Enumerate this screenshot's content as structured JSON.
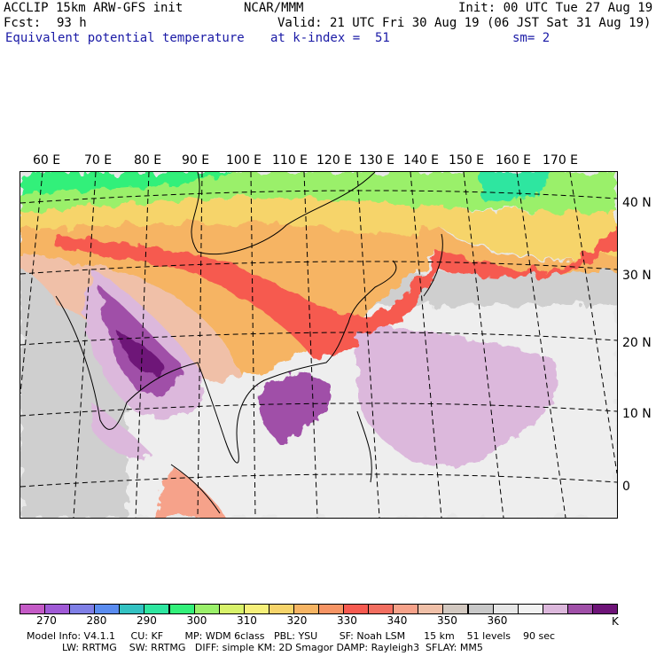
{
  "header": {
    "model_line": "ACCLIP 15km ARW-GFS init",
    "org": "NCAR/MMM",
    "init": "Init: 00 UTC Tue 27 Aug 19",
    "fcst_label": "Fcst:",
    "fcst_value": "93 h",
    "valid": "Valid: 21 UTC Fri 30 Aug 19 (06 JST Sat 31 Aug 19)",
    "field_name": "Equivalent potential temperature",
    "level": "at k-index =  51",
    "smoothing": "sm= 2"
  },
  "map": {
    "lon_labels": [
      "60 E",
      "70 E",
      "80 E",
      "90 E",
      "100 E",
      "110 E",
      "120 E",
      "130 E",
      "140 E",
      "150 E",
      "160 E",
      "170 E"
    ],
    "lat_labels": [
      "40 N",
      "30 N",
      "20 N",
      "10 N",
      "0"
    ]
  },
  "colorbar": {
    "unit": "K",
    "colors": [
      "#c45ac6",
      "#a05ad6",
      "#7f7fe6",
      "#5a8cf0",
      "#33c2c2",
      "#2ee6a0",
      "#33f07a",
      "#9af06a",
      "#d8f26a",
      "#f6f07a",
      "#f6d46a",
      "#f6b463",
      "#f69464",
      "#f65a50",
      "#f26e60",
      "#f6a28a",
      "#f0c0a8",
      "#d2c8c0",
      "#c8c8c8",
      "#e6e6e6",
      "#f2f2f2",
      "#dcb8dc",
      "#a050a8",
      "#6e1478"
    ],
    "ticks": [
      "270",
      "280",
      "290",
      "300",
      "310",
      "320",
      "330",
      "340",
      "350",
      "360"
    ]
  },
  "footer": {
    "line1": "Model Info: V4.1.1     CU: KF       MP: WDM 6class   PBL: YSU       SF: Noah LSM      15 km    51 levels    90 sec",
    "line2": "LW: RRTMG    SW: RRTMG   DIFF: simple KM: 2D Smagor DAMP: Rayleigh3  SFLAY: MM5"
  }
}
